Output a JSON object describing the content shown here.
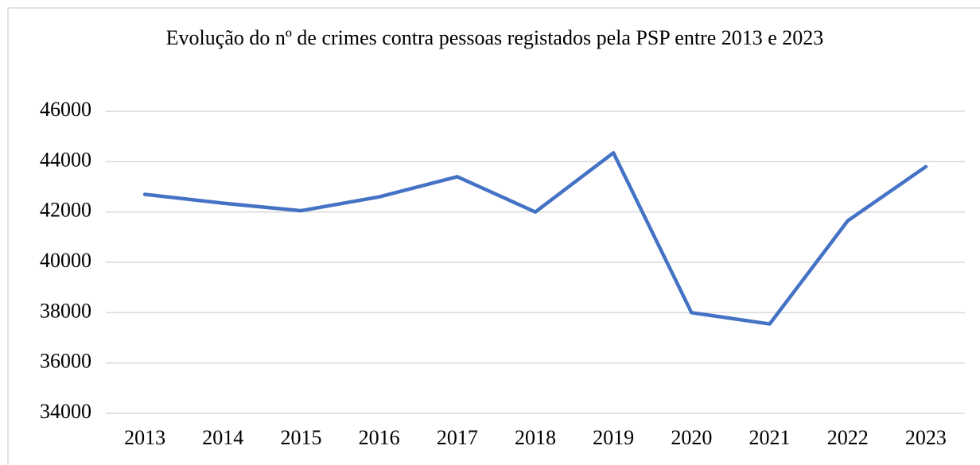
{
  "chart_data": {
    "type": "line",
    "title": "Evolução do nº de crimes contra pessoas registados pela PSP entre 2013 e 2023",
    "categories": [
      "2013",
      "2014",
      "2015",
      "2016",
      "2017",
      "2018",
      "2019",
      "2020",
      "2021",
      "2022",
      "2023"
    ],
    "values": [
      42700,
      42350,
      42050,
      42600,
      43400,
      42000,
      44350,
      38000,
      37550,
      41650,
      43800
    ],
    "color": "#4472c4",
    "ylim": [
      34000,
      46000
    ],
    "yticks": [
      34000,
      36000,
      38000,
      40000,
      42000,
      44000,
      46000
    ],
    "grid": true
  }
}
